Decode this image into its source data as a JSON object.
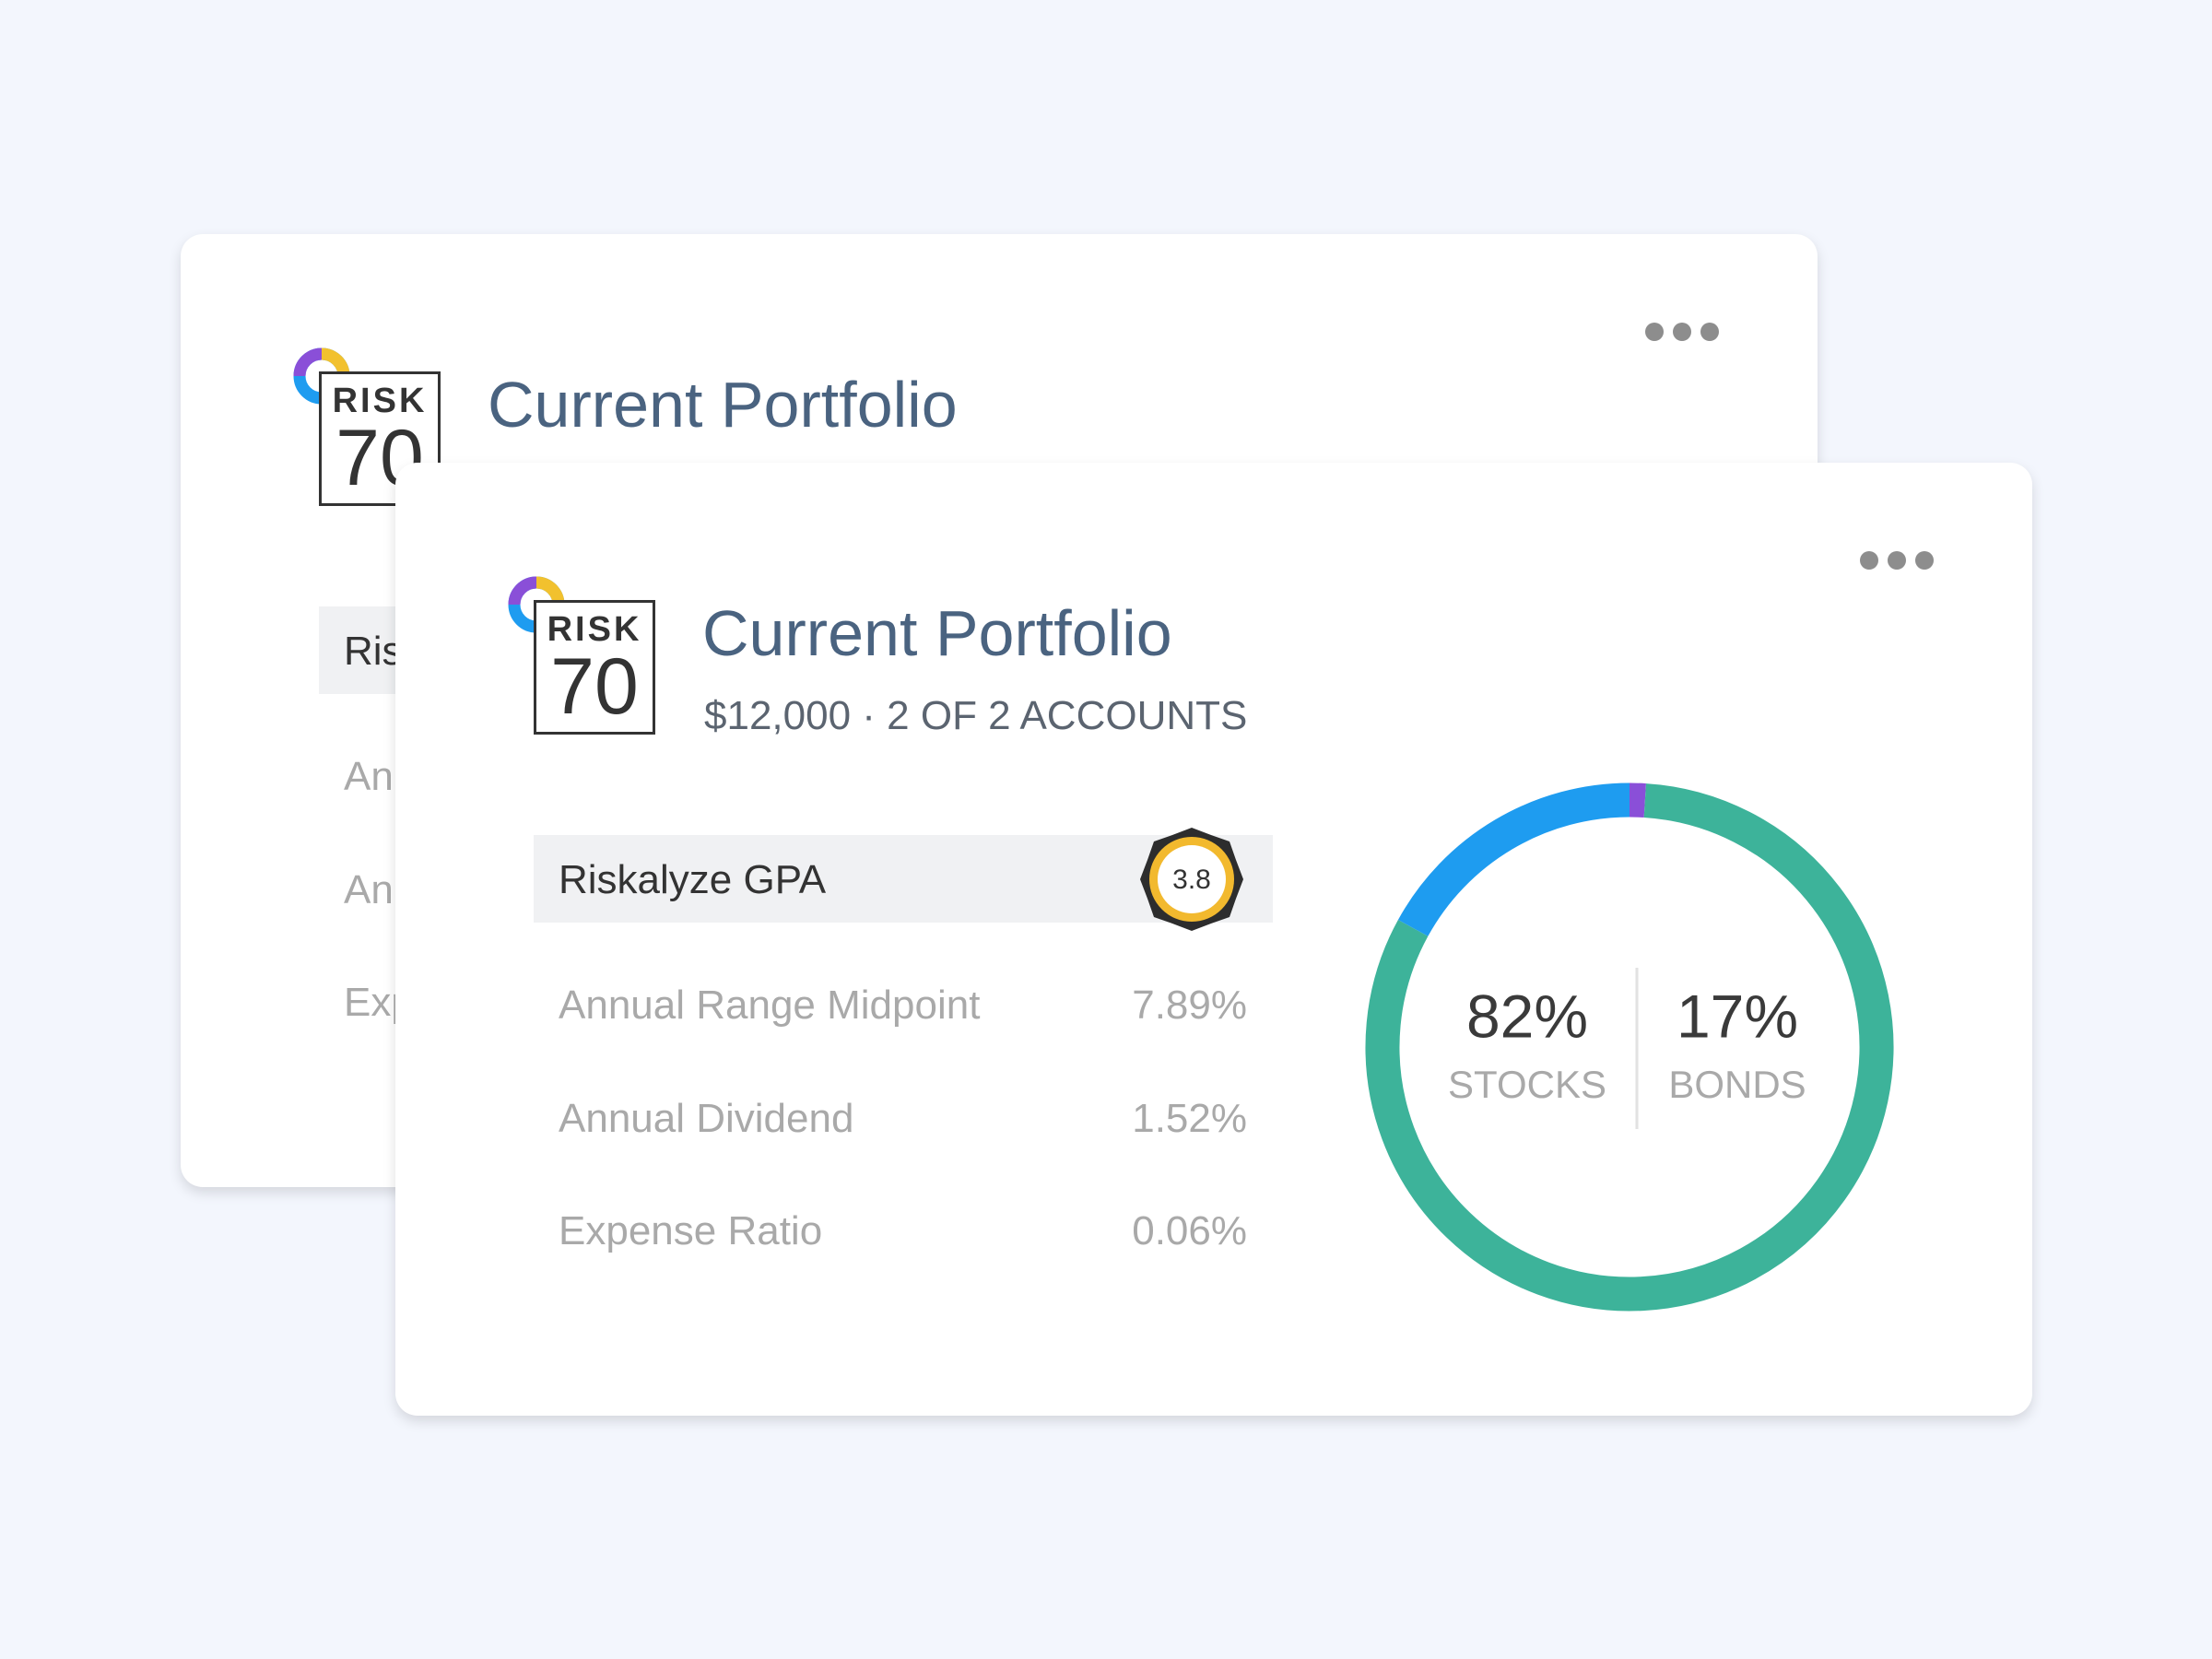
{
  "portfolio": {
    "risk_label": "RISK",
    "risk_score": 70,
    "title": "Current Portfolio",
    "subtitle": "$12,000 · 2 OF 2 ACCOUNTS",
    "gpa": {
      "label": "Riskalyze GPA",
      "value": 3.8
    },
    "metrics": [
      {
        "label": "Annual Range Midpoint",
        "value": "7.89%"
      },
      {
        "label": "Annual Dividend",
        "value": "1.52%"
      },
      {
        "label": "Expense Ratio",
        "value": "0.06%"
      }
    ],
    "allocation": {
      "segments": [
        {
          "value": 1,
          "color": "#8a4fd8"
        },
        {
          "value": 82,
          "value_label": "82%",
          "label": "STOCKS",
          "color": "#3db39a"
        },
        {
          "value": 17,
          "value_label": "17%",
          "label": "BONDS",
          "color": "#1e9cf0"
        }
      ]
    }
  }
}
